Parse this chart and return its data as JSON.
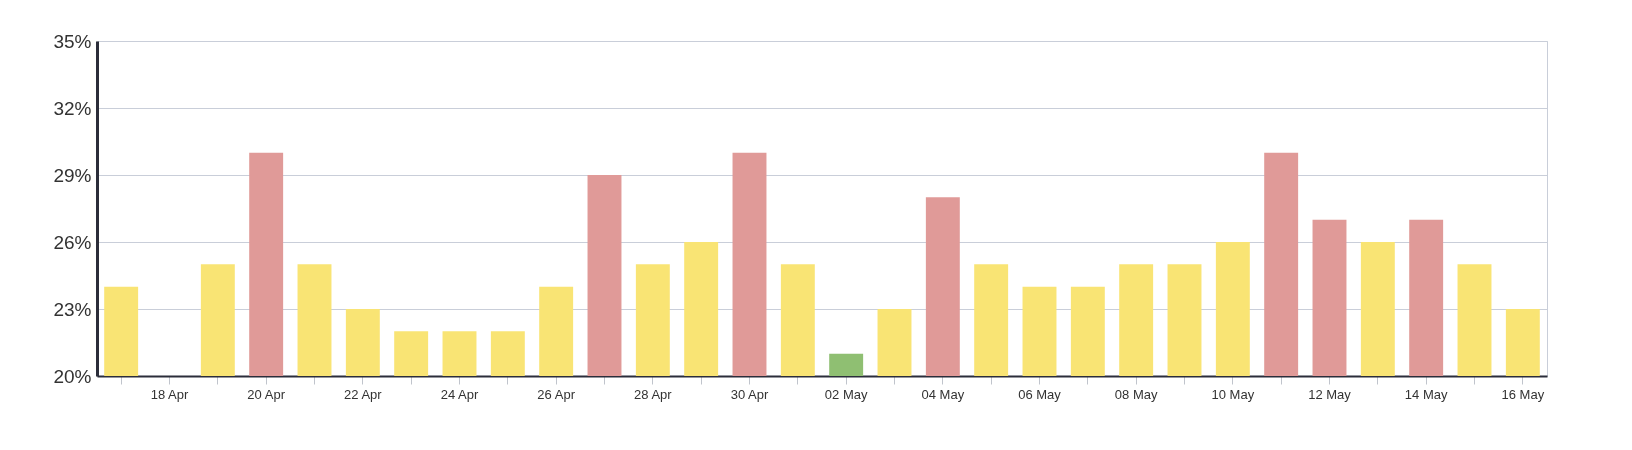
{
  "chart_data": {
    "type": "bar",
    "categories": [
      null,
      "18 Apr",
      null,
      "20 Apr",
      null,
      "22 Apr",
      null,
      "24 Apr",
      null,
      "26 Apr",
      null,
      "28 Apr",
      null,
      "30 Apr",
      null,
      "02 May",
      null,
      "04 May",
      null,
      "06 May",
      null,
      "08 May",
      null,
      "10 May",
      null,
      "12 May",
      null,
      "14 May",
      null,
      "16 May"
    ],
    "values": [
      24,
      null,
      25,
      30,
      25,
      23,
      22,
      22,
      22,
      24,
      29,
      25,
      26,
      30,
      25,
      21,
      23,
      28,
      25,
      24,
      24,
      25,
      25,
      26,
      30,
      27,
      26,
      27,
      25,
      23
    ],
    "colors": [
      "#f9e474",
      "#f9e474",
      "#f9e474",
      "#e09a98",
      "#f9e474",
      "#f9e474",
      "#f9e474",
      "#f9e474",
      "#f9e474",
      "#f9e474",
      "#e09a98",
      "#f9e474",
      "#f9e474",
      "#e09a98",
      "#f9e474",
      "#8fbf72",
      "#f9e474",
      "#e09a98",
      "#f9e474",
      "#f9e474",
      "#f9e474",
      "#f9e474",
      "#f9e474",
      "#f9e474",
      "#e09a98",
      "#e09a98",
      "#f9e474",
      "#e09a98",
      "#f9e474",
      "#f9e474"
    ],
    "ylim": [
      20,
      35
    ],
    "yticks": [
      {
        "value": 20,
        "label": "20%"
      },
      {
        "value": 23,
        "label": "23%"
      },
      {
        "value": 26,
        "label": "26%"
      },
      {
        "value": 29,
        "label": "29%"
      },
      {
        "value": 32,
        "label": "32%"
      },
      {
        "value": 35,
        "label": "35%"
      }
    ],
    "grid": "y"
  }
}
